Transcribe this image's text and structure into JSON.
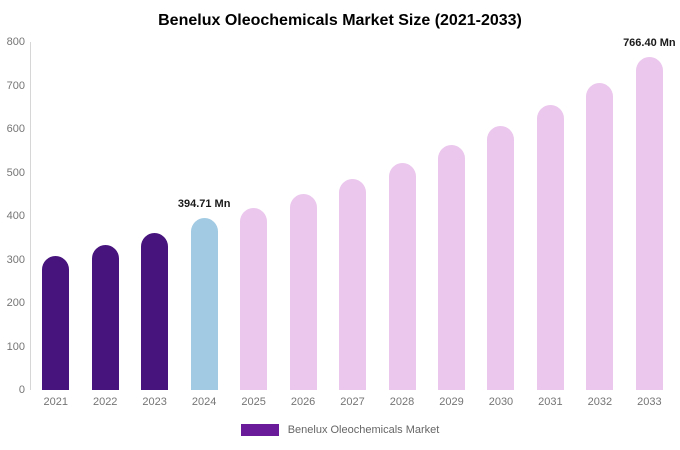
{
  "chart_data": {
    "type": "bar",
    "title": "Benelux Oleochemicals Market Size (2021-2033)",
    "categories": [
      "2021",
      "2022",
      "2023",
      "2024",
      "2025",
      "2026",
      "2027",
      "2028",
      "2029",
      "2030",
      "2031",
      "2032",
      "2033"
    ],
    "values": [
      308,
      334,
      361,
      394.71,
      419,
      451,
      486,
      523,
      563,
      607,
      655,
      706,
      766.4
    ],
    "unit": "Mn",
    "xlabel": "",
    "ylabel": "",
    "ylim": [
      0,
      800
    ],
    "yticks": [
      0,
      100,
      200,
      300,
      400,
      500,
      600,
      700,
      800
    ],
    "grid": false,
    "legend_position": "bottom",
    "bar_colors": [
      "#47147d",
      "#47147d",
      "#47147d",
      "#a2cbe3",
      "#ebc7ed",
      "#ebc7ed",
      "#ebc7ed",
      "#ebc7ed",
      "#ebc7ed",
      "#ebc7ed",
      "#ebc7ed",
      "#ebc7ed",
      "#ebc7ed"
    ],
    "data_labels": [
      {
        "index": 3,
        "text": "394.71 Mn"
      },
      {
        "index": 12,
        "text": "766.40 Mn"
      }
    ]
  },
  "legend": {
    "label": "Benelux Oleochemicals Market",
    "swatch_color": "#6a1b9a"
  },
  "colors": {
    "background": "#ffffff",
    "title_text": "#000000",
    "axis_text": "#757575",
    "axis_line": "#d6d6d6",
    "historical_bar_purple": "#47147d",
    "base_year_bar_blue": "#a2cbe3",
    "forecast_bar_pink": "#ebc7ed",
    "legend_swatch_purple": "#6a1b9a"
  }
}
